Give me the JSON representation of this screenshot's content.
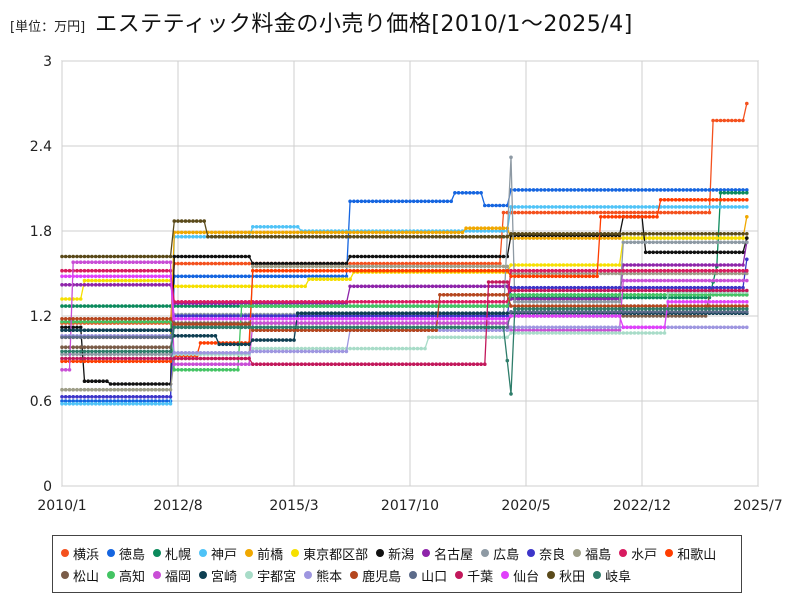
{
  "header": {
    "unit_label": "[単位：万円]",
    "title": "エステティック料金の小売り価格[2010/1〜2025/4]"
  },
  "chart_data": {
    "type": "line",
    "title": "エステティック料金の小売り価格[2010/1〜2025/4]",
    "unit": "[単位：万円]",
    "xlabel": "",
    "ylabel": "",
    "x_range": [
      "2010/1",
      "2025/7"
    ],
    "x_ticks": [
      "2010/1",
      "2012/8",
      "2015/3",
      "2017/10",
      "2020/5",
      "2022/12",
      "2025/7"
    ],
    "ylim": [
      0,
      3
    ],
    "y_ticks": [
      "0",
      "0.6",
      "1.2",
      "1.8",
      "2.4",
      "3"
    ],
    "grid": true,
    "legend_position": "bottom",
    "series": [
      {
        "name": "横浜",
        "color": "#f4511e",
        "points": [
          [
            "2010/1",
            1.15
          ],
          [
            "2012/6",
            1.15
          ],
          [
            "2012/7",
            1.57
          ],
          [
            "2019/10",
            1.57
          ],
          [
            "2019/11",
            1.93
          ],
          [
            "2024/6",
            1.93
          ],
          [
            "2024/7",
            2.58
          ],
          [
            "2025/3",
            2.58
          ],
          [
            "2025/4",
            2.7
          ]
        ]
      },
      {
        "name": "徳島",
        "color": "#1565e0",
        "points": [
          [
            "2010/1",
            0.6
          ],
          [
            "2012/6",
            0.6
          ],
          [
            "2012/7",
            1.48
          ],
          [
            "2016/5",
            1.48
          ],
          [
            "2016/6",
            2.01
          ],
          [
            "2018/9",
            2.01
          ],
          [
            "2018/10",
            2.07
          ],
          [
            "2019/5",
            2.07
          ],
          [
            "2019/6",
            1.98
          ],
          [
            "2019/12",
            1.98
          ],
          [
            "2020/1",
            2.09
          ],
          [
            "2025/4",
            2.09
          ]
        ]
      },
      {
        "name": "札幌",
        "color": "#0b8a5c",
        "points": [
          [
            "2010/1",
            1.27
          ],
          [
            "2019/12",
            1.27
          ],
          [
            "2020/1",
            1.33
          ],
          [
            "2024/6",
            1.33
          ],
          [
            "2024/8",
            1.55
          ],
          [
            "2024/9",
            2.07
          ],
          [
            "2025/4",
            2.07
          ]
        ]
      },
      {
        "name": "神戸",
        "color": "#4fc3f7",
        "points": [
          [
            "2010/1",
            0.58
          ],
          [
            "2012/6",
            0.58
          ],
          [
            "2012/7",
            1.76
          ],
          [
            "2014/3",
            1.76
          ],
          [
            "2014/4",
            1.83
          ],
          [
            "2015/4",
            1.83
          ],
          [
            "2015/5",
            1.8
          ],
          [
            "2019/12",
            1.8
          ],
          [
            "2020/1",
            1.97
          ],
          [
            "2025/4",
            1.97
          ]
        ]
      },
      {
        "name": "前橋",
        "color": "#f0a800",
        "points": [
          [
            "2010/1",
            1.05
          ],
          [
            "2012/6",
            1.05
          ],
          [
            "2012/7",
            1.79
          ],
          [
            "2018/12",
            1.79
          ],
          [
            "2019/1",
            1.82
          ],
          [
            "2019/12",
            1.82
          ],
          [
            "2020/1",
            1.75
          ],
          [
            "2025/3",
            1.75
          ],
          [
            "2025/4",
            1.9
          ]
        ]
      },
      {
        "name": "東京都区部",
        "color": "#f6e000",
        "points": [
          [
            "2010/1",
            1.32
          ],
          [
            "2010/6",
            1.32
          ],
          [
            "2010/7",
            1.45
          ],
          [
            "2012/6",
            1.45
          ],
          [
            "2012/7",
            1.41
          ],
          [
            "2015/6",
            1.41
          ],
          [
            "2015/7",
            1.46
          ],
          [
            "2016/6",
            1.46
          ],
          [
            "2016/7",
            1.51
          ],
          [
            "2019/12",
            1.51
          ],
          [
            "2020/1",
            1.56
          ],
          [
            "2022/6",
            1.56
          ],
          [
            "2022/7",
            1.75
          ],
          [
            "2025/4",
            1.75
          ]
        ]
      },
      {
        "name": "新潟",
        "color": "#111111",
        "points": [
          [
            "2010/1",
            1.12
          ],
          [
            "2010/6",
            1.12
          ],
          [
            "2010/7",
            0.74
          ],
          [
            "2011/1",
            0.74
          ],
          [
            "2011/2",
            0.72
          ],
          [
            "2012/6",
            0.72
          ],
          [
            "2012/7",
            1.62
          ],
          [
            "2014/3",
            1.62
          ],
          [
            "2014/4",
            1.57
          ],
          [
            "2016/5",
            1.57
          ],
          [
            "2016/6",
            1.62
          ],
          [
            "2019/12",
            1.62
          ],
          [
            "2020/1",
            1.77
          ],
          [
            "2022/6",
            1.77
          ],
          [
            "2022/7",
            1.9
          ],
          [
            "2022/12",
            1.9
          ],
          [
            "2023/1",
            1.65
          ],
          [
            "2025/3",
            1.65
          ],
          [
            "2025/4",
            1.75
          ]
        ]
      },
      {
        "name": "名古屋",
        "color": "#8e24aa",
        "points": [
          [
            "2010/1",
            1.42
          ],
          [
            "2012/6",
            1.42
          ],
          [
            "2012/7",
            1.29
          ],
          [
            "2016/5",
            1.29
          ],
          [
            "2016/6",
            1.41
          ],
          [
            "2019/12",
            1.41
          ],
          [
            "2020/1",
            1.32
          ],
          [
            "2022/6",
            1.32
          ],
          [
            "2022/7",
            1.56
          ],
          [
            "2025/3",
            1.56
          ],
          [
            "2025/4",
            1.72
          ]
        ]
      },
      {
        "name": "広島",
        "color": "#8e9aa4",
        "points": [
          [
            "2010/1",
            0.93
          ],
          [
            "2012/6",
            0.93
          ],
          [
            "2012/7",
            1.21
          ],
          [
            "2019/11",
            1.21
          ],
          [
            "2020/1",
            2.32
          ],
          [
            "2020/2",
            1.3
          ],
          [
            "2022/6",
            1.3
          ],
          [
            "2022/7",
            1.72
          ],
          [
            "2025/4",
            1.72
          ]
        ]
      },
      {
        "name": "奈良",
        "color": "#3d35c9",
        "points": [
          [
            "2010/1",
            0.63
          ],
          [
            "2012/6",
            0.63
          ],
          [
            "2012/7",
            1.2
          ],
          [
            "2019/12",
            1.2
          ],
          [
            "2020/1",
            1.4
          ],
          [
            "2025/3",
            1.4
          ],
          [
            "2025/4",
            1.6
          ]
        ]
      },
      {
        "name": "福島",
        "color": "#9e9e88",
        "points": [
          [
            "2010/1",
            0.68
          ],
          [
            "2012/6",
            0.68
          ],
          [
            "2012/7",
            0.9
          ],
          [
            "2014/3",
            0.9
          ],
          [
            "2014/4",
            1.55
          ],
          [
            "2019/12",
            1.55
          ],
          [
            "2020/1",
            1.5
          ],
          [
            "2025/4",
            1.5
          ]
        ]
      },
      {
        "name": "水戸",
        "color": "#d81b60",
        "points": [
          [
            "2010/1",
            1.52
          ],
          [
            "2012/6",
            1.52
          ],
          [
            "2012/7",
            1.3
          ],
          [
            "2019/12",
            1.3
          ],
          [
            "2020/1",
            1.52
          ],
          [
            "2025/4",
            1.52
          ]
        ]
      },
      {
        "name": "和歌山",
        "color": "#ff3d00",
        "points": [
          [
            "2010/1",
            0.88
          ],
          [
            "2012/6",
            0.88
          ],
          [
            "2012/7",
            0.92
          ],
          [
            "2013/1",
            0.92
          ],
          [
            "2013/2",
            1.01
          ],
          [
            "2014/3",
            1.01
          ],
          [
            "2014/4",
            1.52
          ],
          [
            "2019/12",
            1.52
          ],
          [
            "2020/1",
            1.48
          ],
          [
            "2021/12",
            1.48
          ],
          [
            "2022/1",
            1.9
          ],
          [
            "2023/4",
            1.9
          ],
          [
            "2023/5",
            2.02
          ],
          [
            "2025/4",
            2.02
          ]
        ]
      },
      {
        "name": "松山",
        "color": "#7a5c48",
        "points": [
          [
            "2010/1",
            0.98
          ],
          [
            "2012/6",
            0.98
          ],
          [
            "2012/7",
            1.15
          ],
          [
            "2019/12",
            1.15
          ],
          [
            "2020/1",
            1.2
          ],
          [
            "2024/5",
            1.2
          ],
          [
            "2024/6",
            1.35
          ],
          [
            "2025/4",
            1.35
          ]
        ]
      },
      {
        "name": "高知",
        "color": "#43c463",
        "points": [
          [
            "2010/1",
            1.16
          ],
          [
            "2012/6",
            1.16
          ],
          [
            "2012/7",
            0.82
          ],
          [
            "2013/12",
            0.82
          ],
          [
            "2014/1",
            1.27
          ],
          [
            "2019/12",
            1.27
          ],
          [
            "2020/1",
            1.35
          ],
          [
            "2025/4",
            1.35
          ]
        ]
      },
      {
        "name": "福岡",
        "color": "#c94ed6",
        "points": [
          [
            "2010/1",
            0.82
          ],
          [
            "2010/3",
            0.82
          ],
          [
            "2010/4",
            1.58
          ],
          [
            "2012/6",
            1.58
          ],
          [
            "2012/7",
            0.86
          ],
          [
            "2014/3",
            0.86
          ],
          [
            "2014/4",
            1.15
          ],
          [
            "2019/12",
            1.15
          ],
          [
            "2020/1",
            1.1
          ],
          [
            "2022/6",
            1.1
          ],
          [
            "2022/7",
            1.45
          ],
          [
            "2025/4",
            1.45
          ]
        ]
      },
      {
        "name": "宮崎",
        "color": "#0e3f52",
        "points": [
          [
            "2010/1",
            1.1
          ],
          [
            "2012/6",
            1.1
          ],
          [
            "2012/7",
            1.06
          ],
          [
            "2013/6",
            1.06
          ],
          [
            "2013/7",
            1.0
          ],
          [
            "2014/3",
            1.0
          ],
          [
            "2014/4",
            1.03
          ],
          [
            "2015/3",
            1.03
          ],
          [
            "2015/4",
            1.22
          ],
          [
            "2019/12",
            1.22
          ],
          [
            "2020/1",
            1.22
          ],
          [
            "2025/4",
            1.22
          ]
        ]
      },
      {
        "name": "宇都宮",
        "color": "#a8dcc8",
        "points": [
          [
            "2010/1",
            0.9
          ],
          [
            "2012/6",
            0.9
          ],
          [
            "2012/7",
            0.93
          ],
          [
            "2014/3",
            0.93
          ],
          [
            "2014/4",
            0.97
          ],
          [
            "2018/2",
            0.97
          ],
          [
            "2018/3",
            1.05
          ],
          [
            "2019/12",
            1.05
          ],
          [
            "2020/1",
            1.08
          ],
          [
            "2023/6",
            1.08
          ],
          [
            "2023/7",
            1.37
          ],
          [
            "2025/4",
            1.37
          ]
        ]
      },
      {
        "name": "熊本",
        "color": "#9e96e0",
        "points": [
          [
            "2010/1",
            1.06
          ],
          [
            "2012/6",
            1.06
          ],
          [
            "2012/7",
            0.94
          ],
          [
            "2014/3",
            0.94
          ],
          [
            "2014/4",
            0.95
          ],
          [
            "2016/5",
            0.95
          ],
          [
            "2016/6",
            1.1
          ],
          [
            "2019/12",
            1.1
          ],
          [
            "2020/1",
            1.12
          ],
          [
            "2025/4",
            1.12
          ]
        ]
      },
      {
        "name": "鹿児島",
        "color": "#b5461e",
        "points": [
          [
            "2010/1",
            1.18
          ],
          [
            "2012/6",
            1.18
          ],
          [
            "2012/7",
            1.14
          ],
          [
            "2014/3",
            1.14
          ],
          [
            "2014/4",
            1.1
          ],
          [
            "2018/5",
            1.1
          ],
          [
            "2018/6",
            1.35
          ],
          [
            "2019/12",
            1.35
          ],
          [
            "2020/1",
            1.27
          ],
          [
            "2025/4",
            1.27
          ]
        ]
      },
      {
        "name": "山口",
        "color": "#5c6b8a",
        "points": [
          [
            "2010/1",
            1.05
          ],
          [
            "2012/6",
            1.05
          ],
          [
            "2012/7",
            1.12
          ],
          [
            "2019/12",
            1.12
          ],
          [
            "2020/1",
            1.23
          ],
          [
            "2025/4",
            1.23
          ]
        ]
      },
      {
        "name": "千葉",
        "color": "#c2185b",
        "points": [
          [
            "2010/1",
            0.9
          ],
          [
            "2012/6",
            0.9
          ],
          [
            "2012/7",
            0.9
          ],
          [
            "2014/3",
            0.9
          ],
          [
            "2014/4",
            0.86
          ],
          [
            "2019/6",
            0.86
          ],
          [
            "2019/7",
            1.44
          ],
          [
            "2019/12",
            1.44
          ],
          [
            "2020/1",
            1.38
          ],
          [
            "2025/4",
            1.38
          ]
        ]
      },
      {
        "name": "仙台",
        "color": "#e040fb",
        "points": [
          [
            "2010/1",
            1.48
          ],
          [
            "2012/6",
            1.48
          ],
          [
            "2012/7",
            1.18
          ],
          [
            "2019/12",
            1.18
          ],
          [
            "2020/1",
            1.2
          ],
          [
            "2022/6",
            1.2
          ],
          [
            "2022/7",
            1.12
          ],
          [
            "2023/6",
            1.12
          ],
          [
            "2023/7",
            1.3
          ],
          [
            "2025/4",
            1.3
          ]
        ]
      },
      {
        "name": "秋田",
        "color": "#5a4a1a",
        "points": [
          [
            "2010/1",
            1.62
          ],
          [
            "2012/6",
            1.62
          ],
          [
            "2012/7",
            1.87
          ],
          [
            "2013/3",
            1.87
          ],
          [
            "2013/4",
            1.76
          ],
          [
            "2019/12",
            1.76
          ],
          [
            "2020/1",
            1.78
          ],
          [
            "2025/4",
            1.78
          ]
        ]
      },
      {
        "name": "岐阜",
        "color": "#2e7d6a",
        "points": [
          [
            "2010/1",
            0.95
          ],
          [
            "2012/6",
            0.95
          ],
          [
            "2012/7",
            1.12
          ],
          [
            "2019/11",
            1.12
          ],
          [
            "2020/1",
            0.65
          ],
          [
            "2020/2",
            1.25
          ],
          [
            "2025/4",
            1.25
          ]
        ]
      }
    ]
  }
}
